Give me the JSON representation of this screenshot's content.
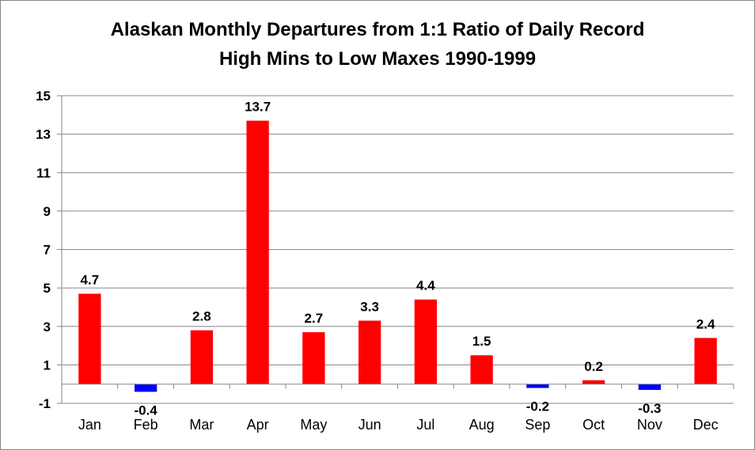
{
  "chart_data": {
    "type": "bar",
    "title_lines": [
      "Alaskan Monthly Departures from 1:1 Ratio of Daily Record",
      "High Mins to Low Maxes 1990-1999"
    ],
    "categories": [
      "Jan",
      "Feb",
      "Mar",
      "Apr",
      "May",
      "Jun",
      "Jul",
      "Aug",
      "Sep",
      "Oct",
      "Nov",
      "Dec"
    ],
    "values": [
      4.7,
      -0.4,
      2.8,
      13.7,
      2.7,
      3.3,
      4.4,
      1.5,
      -0.2,
      0.2,
      -0.3,
      2.4
    ],
    "data_labels": [
      "4.7",
      "-0.4",
      "2.8",
      "13.7",
      "2.7",
      "3.3",
      "4.4",
      "1.5",
      "-0.2",
      "0.2",
      "-0.3",
      "2.4"
    ],
    "ylim": [
      -1,
      15
    ],
    "yticks": [
      -1,
      1,
      3,
      5,
      7,
      9,
      11,
      13,
      15
    ],
    "ytick_labels": [
      "-1",
      "1",
      "3",
      "5",
      "7",
      "9",
      "11",
      "13",
      "15"
    ],
    "xlabel": "",
    "ylabel": "",
    "grid": true,
    "colors": {
      "positive": "#ff0000",
      "negative": "#0000ff",
      "grid": "#868686",
      "axis": "#868686"
    }
  }
}
